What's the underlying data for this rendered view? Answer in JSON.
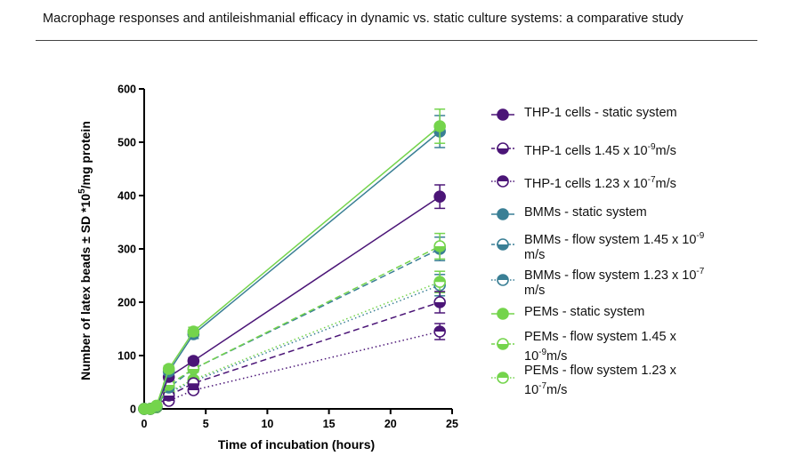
{
  "header": {
    "title": "Macrophage responses and antileishmanial efficacy in dynamic vs. static culture systems: a comparative study"
  },
  "chart_data": {
    "type": "line",
    "xlabel": "Time of incubation (hours)",
    "ylabel_parts": [
      "Number of latex beads ± SD *10",
      "5",
      "/mg protein"
    ],
    "xlim": [
      0,
      25
    ],
    "ylim": [
      0,
      600
    ],
    "xticks": [
      0,
      5,
      10,
      15,
      20,
      25
    ],
    "yticks": [
      0,
      100,
      200,
      300,
      400,
      500,
      600
    ],
    "grid": false,
    "legend_position": "right",
    "x": [
      0,
      0.5,
      1,
      2,
      4,
      24
    ],
    "series": [
      {
        "name": "THP-1 cells - static system",
        "label_parts": [
          [
            "THP-1 cells - static system",
            ""
          ]
        ],
        "color": "#4b1577",
        "line": "solid",
        "marker": "filled",
        "values": [
          0,
          0,
          5,
          60,
          90,
          398
        ],
        "error": [
          0,
          0,
          2,
          6,
          6,
          22
        ]
      },
      {
        "name": "THP-1 cells 1.45 x 10-9m/s",
        "label_parts": [
          [
            "THP-1 cells 1.45 x 10",
            "-9"
          ],
          [
            "m/s",
            ""
          ]
        ],
        "color": "#4b1577",
        "line": "dashed",
        "marker": "half-bottom",
        "values": [
          0,
          0,
          4,
          25,
          48,
          200
        ],
        "error": [
          0,
          0,
          2,
          4,
          5,
          20
        ]
      },
      {
        "name": "THP-1 cells 1.23 x 10-7m/s",
        "label_parts": [
          [
            "THP-1 cells 1.23 x 10",
            "-7"
          ],
          [
            "m/s",
            ""
          ]
        ],
        "color": "#4b1577",
        "line": "dotted",
        "marker": "half-top",
        "values": [
          0,
          0,
          3,
          15,
          35,
          145
        ],
        "error": [
          0,
          0,
          2,
          3,
          4,
          15
        ]
      },
      {
        "name": "BMMs - static system",
        "label_parts": [
          [
            "BMMs - static system",
            ""
          ]
        ],
        "color": "#3a7f95",
        "line": "solid",
        "marker": "filled",
        "values": [
          0,
          0,
          5,
          70,
          140,
          520
        ],
        "error": [
          0,
          0,
          2,
          6,
          8,
          30
        ]
      },
      {
        "name": "BMMs - flow system 1.45 x 10-9 m/s",
        "label_parts": [
          [
            "BMMs - flow system 1.45 x 10",
            "-9"
          ],
          [
            "\nm/s",
            ""
          ]
        ],
        "color": "#3a7f95",
        "line": "dashed",
        "marker": "half-bottom",
        "values": [
          0,
          0,
          4,
          40,
          75,
          300
        ],
        "error": [
          0,
          0,
          2,
          4,
          6,
          22
        ]
      },
      {
        "name": "BMMs - flow system 1.23 x 10-7 m/s",
        "label_parts": [
          [
            "BMMs - flow system 1.23 x 10",
            "-7"
          ],
          [
            "\nm/s",
            ""
          ]
        ],
        "color": "#3a7f95",
        "line": "dotted",
        "marker": "half-top",
        "values": [
          0,
          0,
          3,
          30,
          52,
          232
        ],
        "error": [
          0,
          0,
          2,
          4,
          5,
          20
        ]
      },
      {
        "name": "PEMs - static system",
        "label_parts": [
          [
            "PEMs - static system",
            ""
          ]
        ],
        "color": "#74d44c",
        "line": "solid",
        "marker": "filled",
        "values": [
          0,
          0,
          6,
          75,
          145,
          530
        ],
        "error": [
          0,
          0,
          2,
          6,
          8,
          32
        ]
      },
      {
        "name": "PEMs - flow system 1.45 x 10-9m/s",
        "label_parts": [
          [
            "PEMs - flow system 1.45 x\n10",
            "-9"
          ],
          [
            "m/s",
            ""
          ]
        ],
        "color": "#74d44c",
        "line": "dashed",
        "marker": "half-bottom",
        "values": [
          0,
          0,
          4,
          45,
          75,
          305
        ],
        "error": [
          0,
          0,
          2,
          4,
          6,
          24
        ]
      },
      {
        "name": "PEMs - flow system 1.23 x 10-7m/s",
        "label_parts": [
          [
            "PEMs - flow system 1.23 x\n10",
            "-7"
          ],
          [
            "m/s",
            ""
          ]
        ],
        "color": "#74d44c",
        "line": "dotted",
        "marker": "half-top",
        "values": [
          0,
          0,
          3,
          32,
          55,
          238
        ],
        "error": [
          0,
          0,
          2,
          4,
          5,
          20
        ]
      }
    ]
  }
}
